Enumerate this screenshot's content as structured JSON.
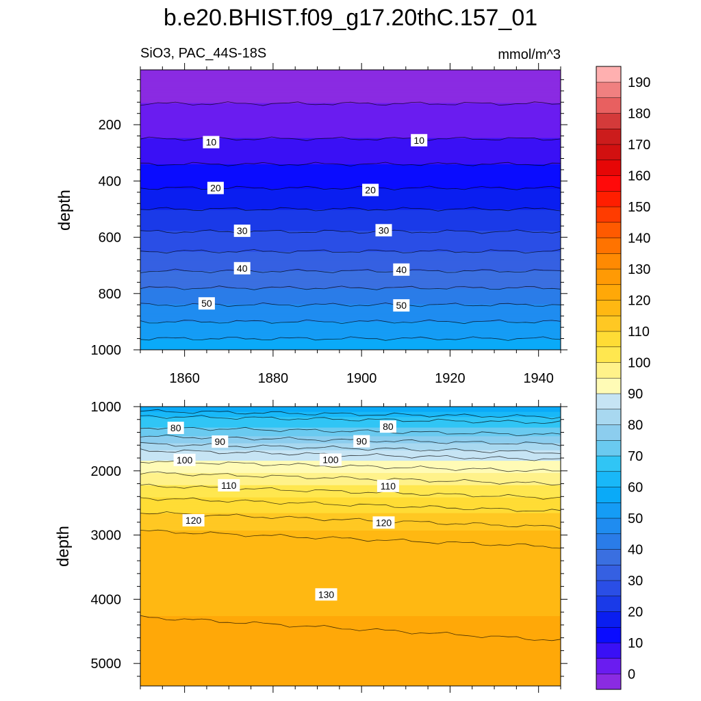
{
  "chart_data": {
    "type": "contour",
    "title": "b.e20.BHIST.f09_g17.20thC.157_01",
    "subtitle_left": "SiO3, PAC_44S-18S",
    "subtitle_right": "mmol/m^3",
    "x_range": [
      1850,
      1945
    ],
    "x_ticks": [
      1860,
      1880,
      1900,
      1920,
      1940
    ],
    "colorbar": {
      "levels": [
        0,
        5,
        10,
        15,
        20,
        25,
        30,
        35,
        40,
        45,
        50,
        55,
        60,
        65,
        70,
        75,
        80,
        85,
        90,
        95,
        100,
        105,
        110,
        115,
        120,
        125,
        130,
        135,
        140,
        145,
        150,
        155,
        160,
        165,
        170,
        175,
        180,
        185,
        190,
        195
      ],
      "labels": [
        "0",
        "10",
        "20",
        "30",
        "40",
        "50",
        "60",
        "70",
        "80",
        "90",
        "100",
        "110",
        "120",
        "130",
        "140",
        "150",
        "160",
        "170",
        "180",
        "190"
      ],
      "colors": [
        "#8a2be2",
        "#6a1cf0",
        "#3a10f5",
        "#0a0cff",
        "#0a1ef0",
        "#1a3ae8",
        "#2a4ee6",
        "#3560e2",
        "#3a6fe0",
        "#2a7ce8",
        "#1f8cf0",
        "#159cf5",
        "#0aaaf8",
        "#19b8f8",
        "#30c5f5",
        "#6acaf0",
        "#8ccdee",
        "#a8d8f0",
        "#c6e4f4",
        "#fffbb6",
        "#fff28a",
        "#ffe74f",
        "#ffdc35",
        "#ffc823",
        "#ffb812",
        "#ffa808",
        "#ff9a05",
        "#ff8a02",
        "#ff7300",
        "#ff5a00",
        "#ff3c00",
        "#ff1e00",
        "#ff0a0a",
        "#e60606",
        "#d21010",
        "#cc1c1c",
        "#d43a3a",
        "#e86060",
        "#f08080",
        "#ffb0b0"
      ]
    },
    "panels": [
      {
        "name": "upper",
        "y_label": "depth",
        "y_range": [
          5,
          1000
        ],
        "y_ticks": [
          200,
          400,
          600,
          800,
          1000
        ],
        "profile": {
          "depths": [
            5,
            125,
            250,
            340,
            425,
            500,
            580,
            650,
            720,
            780,
            840,
            900,
            960,
            1000
          ],
          "values": [
            2,
            5,
            10,
            15,
            20,
            25,
            30,
            35,
            40,
            45,
            50,
            55,
            60,
            62
          ]
        },
        "contour_labels": [
          {
            "text": "10",
            "x": 1866,
            "y": 262
          },
          {
            "text": "10",
            "x": 1913,
            "y": 255
          },
          {
            "text": "20",
            "x": 1867,
            "y": 425
          },
          {
            "text": "20",
            "x": 1902,
            "y": 432
          },
          {
            "text": "30",
            "x": 1873,
            "y": 577
          },
          {
            "text": "30",
            "x": 1905,
            "y": 575
          },
          {
            "text": "40",
            "x": 1873,
            "y": 710
          },
          {
            "text": "40",
            "x": 1909,
            "y": 715
          },
          {
            "text": "50",
            "x": 1865,
            "y": 835
          },
          {
            "text": "50",
            "x": 1909,
            "y": 842
          }
        ]
      },
      {
        "name": "lower",
        "y_label": "depth",
        "y_range": [
          1000,
          5350
        ],
        "y_ticks": [
          1000,
          2000,
          3000,
          4000,
          5000
        ],
        "profile": {
          "depths": [
            1000,
            1070,
            1150,
            1250,
            1400,
            1520,
            1680,
            1950,
            2230,
            2500,
            2800,
            3200,
            5350
          ],
          "values": [
            62,
            65,
            70,
            72,
            78,
            82,
            90,
            98,
            105,
            112,
            118,
            124,
            126
          ]
        },
        "contour_labels": [
          {
            "text": "80",
            "x": 1858,
            "y": 1330
          },
          {
            "text": "80",
            "x": 1906,
            "y": 1310
          },
          {
            "text": "90",
            "x": 1868,
            "y": 1545
          },
          {
            "text": "90",
            "x": 1900,
            "y": 1540
          },
          {
            "text": "100",
            "x": 1860,
            "y": 1830
          },
          {
            "text": "100",
            "x": 1893,
            "y": 1825
          },
          {
            "text": "110",
            "x": 1870,
            "y": 2225
          },
          {
            "text": "110",
            "x": 1906,
            "y": 2235
          },
          {
            "text": "120",
            "x": 1862,
            "y": 2770
          },
          {
            "text": "120",
            "x": 1905,
            "y": 2805
          },
          {
            "text": "130",
            "x": 1892,
            "y": 3925
          }
        ]
      }
    ]
  }
}
